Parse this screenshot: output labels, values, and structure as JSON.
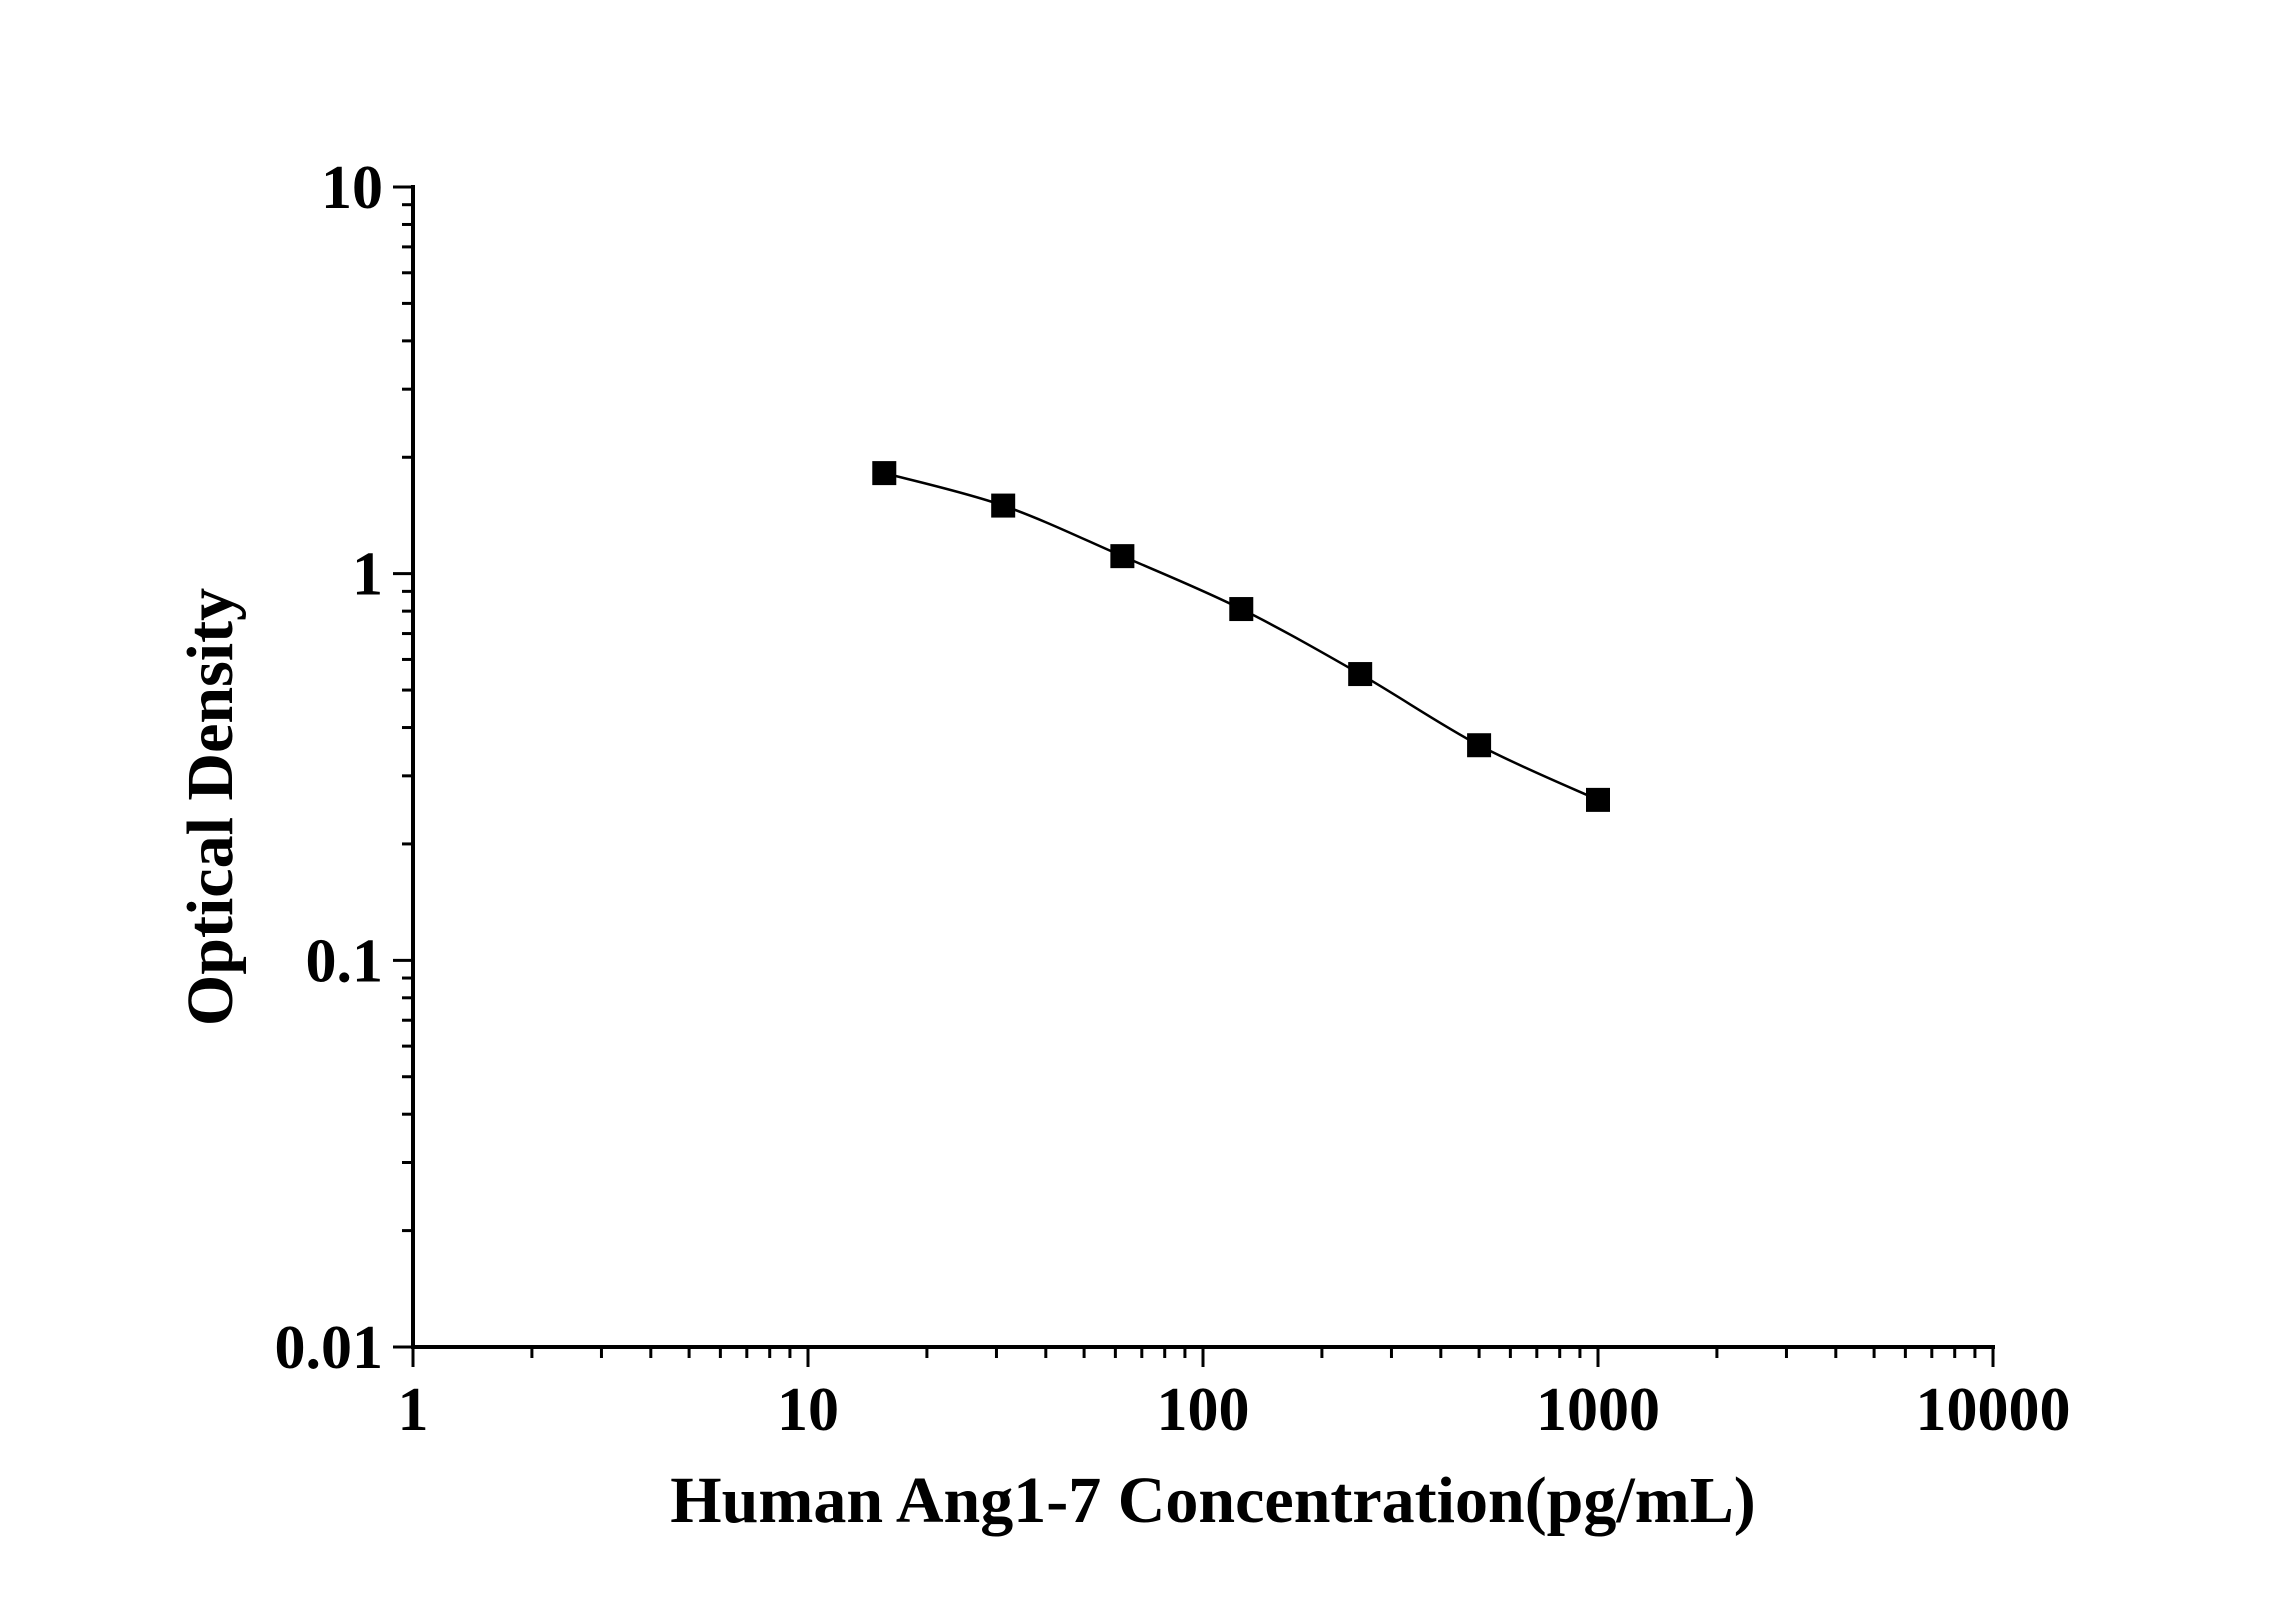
{
  "chart_data": {
    "type": "scatter",
    "title": "",
    "xlabel": "Human Ang1-7 Concentration(pg/mL)",
    "ylabel": "Optical Density",
    "xscale": "log",
    "yscale": "log",
    "xlim": [
      1,
      10000
    ],
    "ylim": [
      0.01,
      10
    ],
    "x_ticks": [
      "1",
      "10",
      "100",
      "1000",
      "10000"
    ],
    "y_ticks": [
      "0.01",
      "0.1",
      "1",
      "10"
    ],
    "grid": false,
    "legend": "none",
    "marker": "square",
    "line": "smooth-curve",
    "colors": {
      "series": "#000000",
      "axis": "#000000",
      "background": "#ffffff"
    },
    "series": [
      {
        "x": [
          15.6,
          31.2,
          62.5,
          125,
          250,
          500,
          1000
        ],
        "y": [
          1.82,
          1.5,
          1.11,
          0.81,
          0.55,
          0.36,
          0.26
        ]
      }
    ]
  }
}
